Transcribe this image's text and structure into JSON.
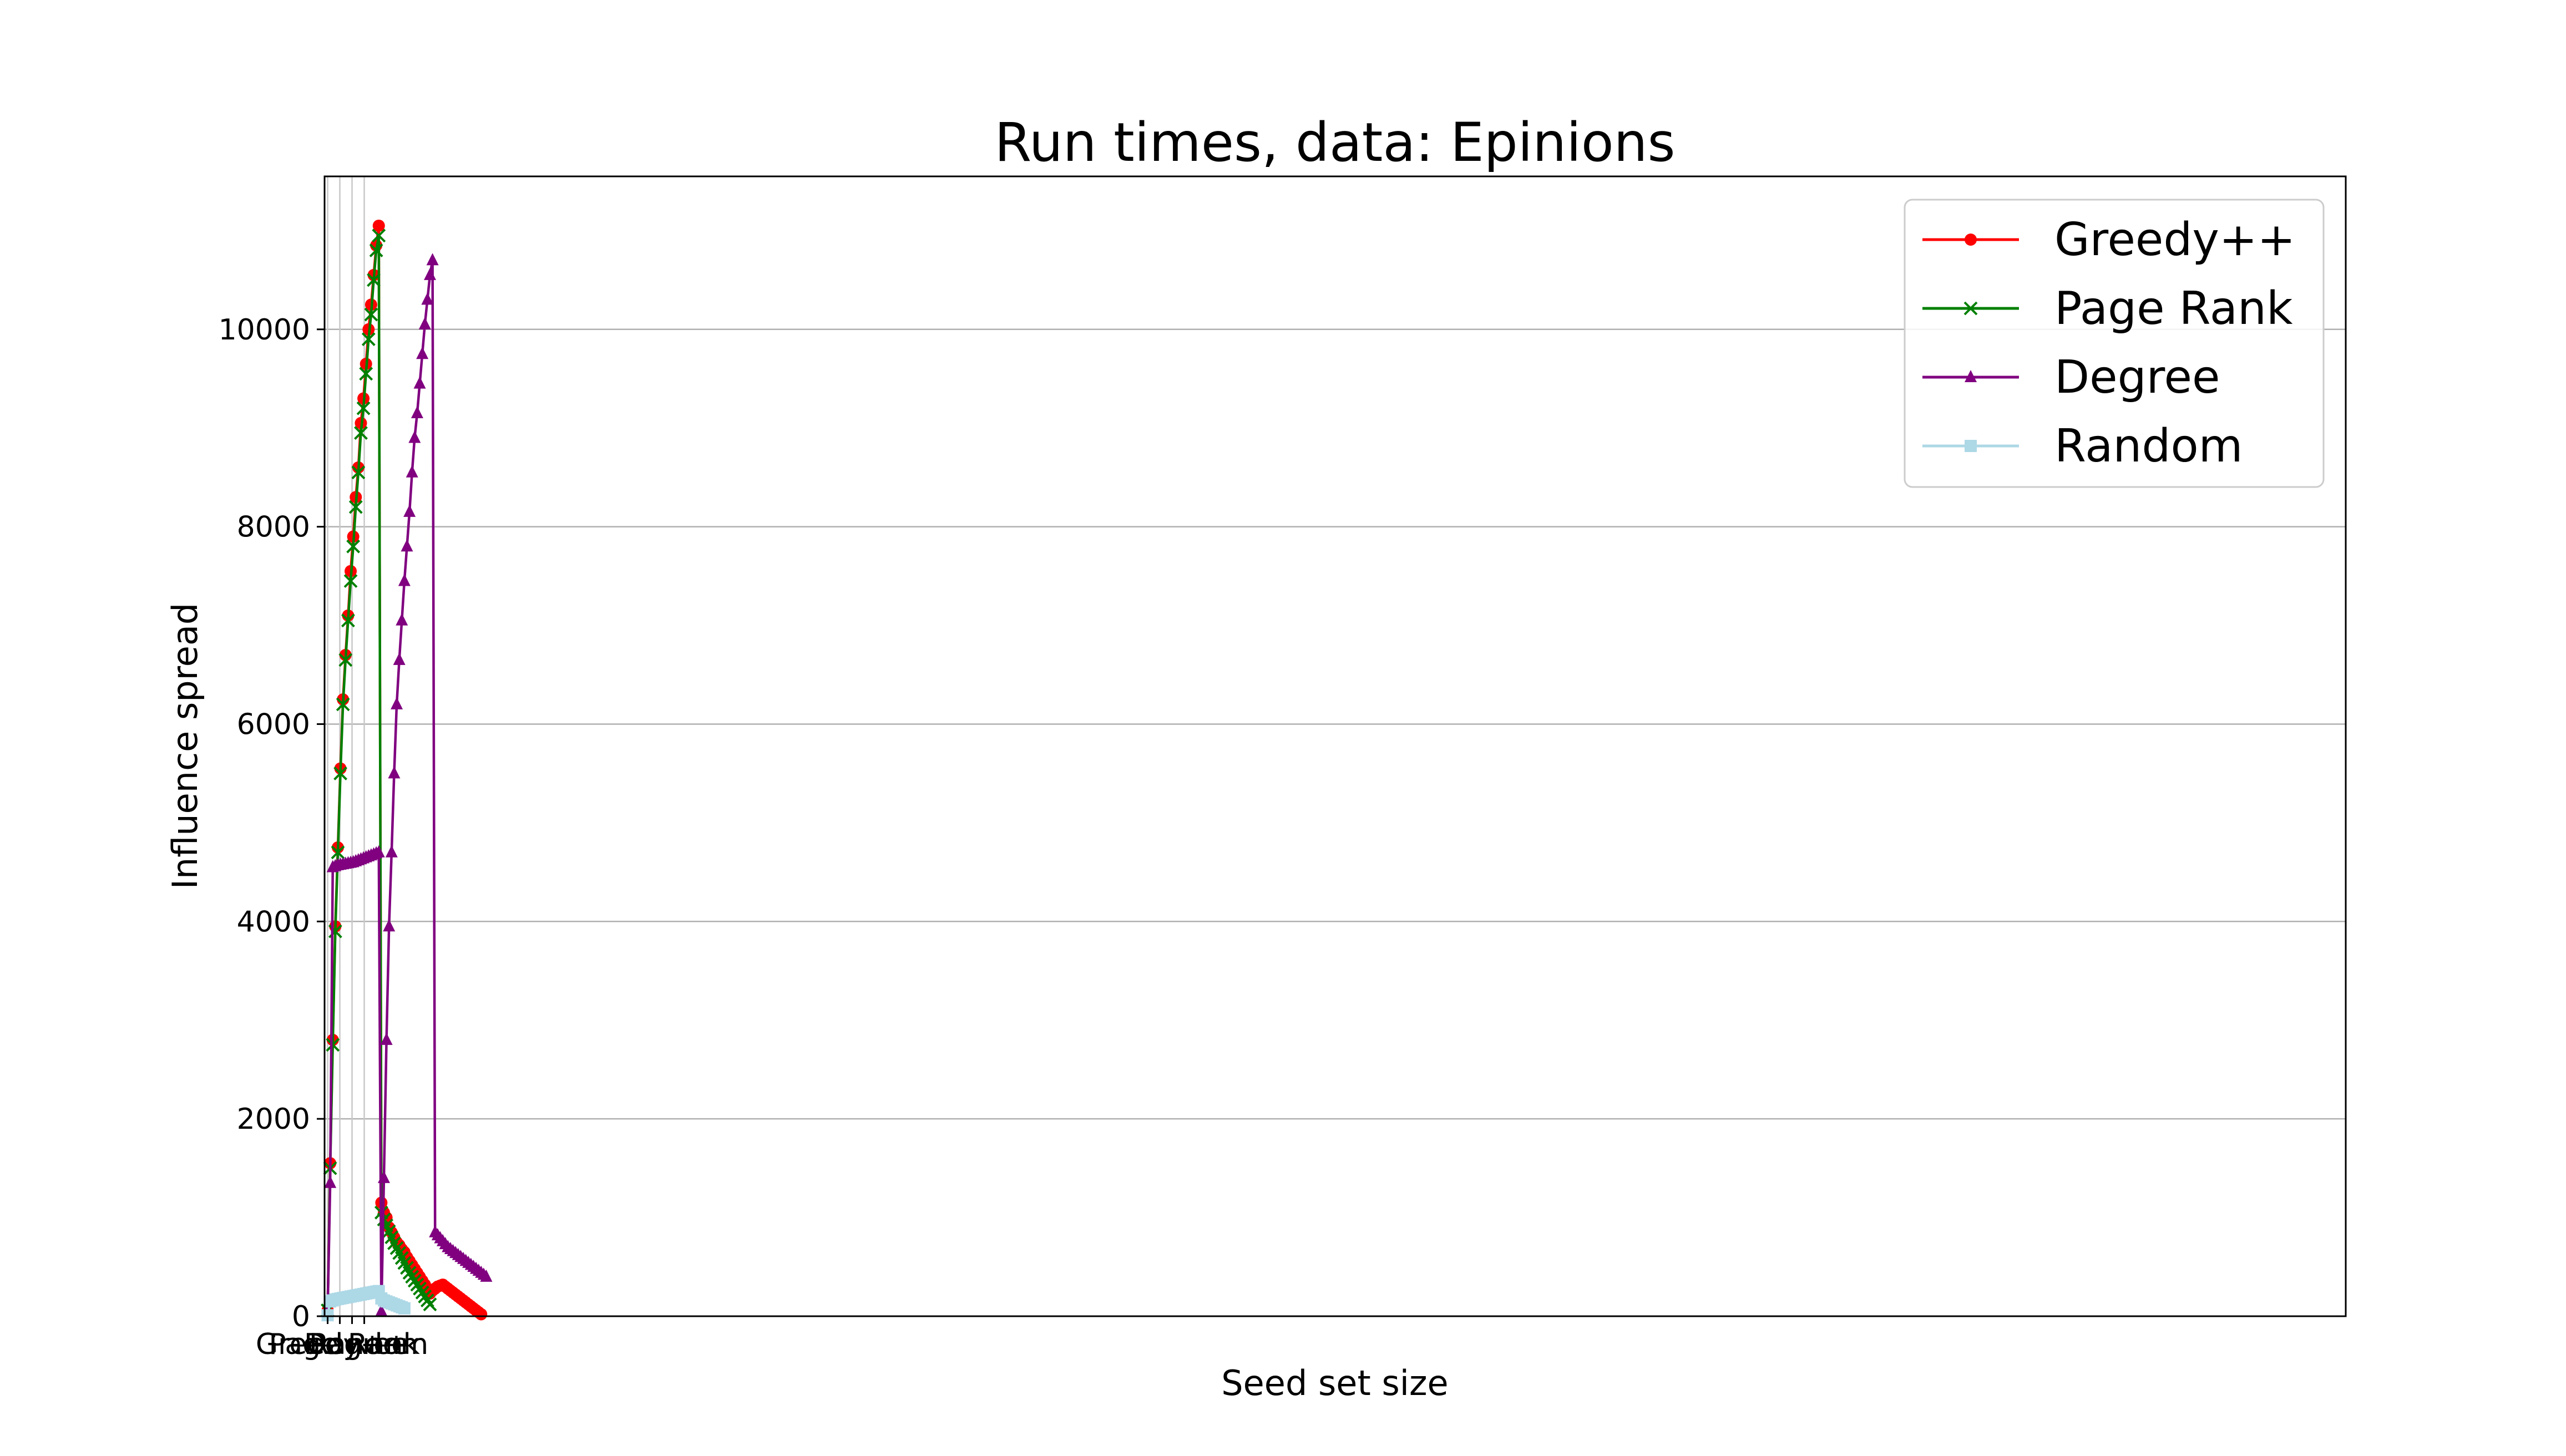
{
  "chart_data": {
    "type": "line",
    "title": "Run times, data: Epinions",
    "xlabel": "Seed set size",
    "ylabel": "Influence spread",
    "xlim": [
      -1.2,
      62
    ],
    "ylim": [
      0,
      11550
    ],
    "y_ticks": [
      0,
      2000,
      4000,
      6000,
      8000,
      10000
    ],
    "x_tick_labels": [
      "Greedy++",
      "Page Rank",
      "Degree",
      "Random"
    ],
    "grid": "horizontal",
    "legend": "top-right",
    "colors": {
      "Greedy++": "#ff0000",
      "Page Rank": "#008000",
      "Degree": "#800080",
      "Random": "#add8e6"
    },
    "series": [
      {
        "name": "Greedy++",
        "color": "#ff0000",
        "marker": "circle",
        "x": [
          0,
          1,
          2,
          3,
          4,
          5,
          6,
          7,
          8,
          9,
          10,
          11,
          12,
          13,
          14,
          15,
          16,
          17,
          18,
          19,
          20,
          21,
          22,
          23,
          24,
          25,
          26,
          27,
          28,
          29,
          30,
          31,
          32,
          33,
          34,
          35,
          36,
          37,
          38,
          39,
          40,
          41,
          42,
          43,
          44,
          45,
          46,
          47,
          48,
          49,
          50,
          51,
          52,
          53,
          54,
          55,
          56,
          57,
          58,
          59,
          60
        ],
        "values": [
          60,
          1550,
          2800,
          3950,
          4750,
          5550,
          6250,
          6700,
          7100,
          7550,
          7900,
          8300,
          8600,
          9050,
          9300,
          9650,
          10000,
          10250,
          10550,
          10850,
          11050,
          1150,
          1050,
          1000,
          900,
          850,
          800,
          750,
          720,
          680,
          650,
          600,
          560,
          520,
          480,
          440,
          400,
          360,
          320,
          280,
          230,
          260,
          280,
          300,
          310,
          320,
          300,
          280,
          260,
          240,
          220,
          200,
          180,
          160,
          140,
          120,
          100,
          80,
          60,
          40,
          20
        ]
      },
      {
        "name": "Page Rank",
        "color": "#008000",
        "marker": "x",
        "x": [
          0,
          1,
          2,
          3,
          4,
          5,
          6,
          7,
          8,
          9,
          10,
          11,
          12,
          13,
          14,
          15,
          16,
          17,
          18,
          19,
          20,
          21,
          22,
          23,
          24,
          25,
          26,
          27,
          28,
          29,
          30,
          31,
          32,
          33,
          34,
          35,
          36,
          37,
          38,
          39,
          40
        ],
        "values": [
          60,
          1500,
          2750,
          3900,
          4700,
          5500,
          6200,
          6650,
          7050,
          7450,
          7800,
          8200,
          8550,
          8950,
          9200,
          9550,
          9900,
          10150,
          10500,
          10800,
          10950,
          1050,
          980,
          920,
          860,
          800,
          740,
          690,
          640,
          590,
          540,
          490,
          440,
          400,
          360,
          320,
          280,
          240,
          200,
          160,
          120
        ]
      },
      {
        "name": "Degree",
        "color": "#800080",
        "marker": "triangle",
        "x": [
          0,
          1,
          2,
          3,
          4,
          5,
          6,
          7,
          8,
          9,
          10,
          11,
          12,
          13,
          14,
          15,
          16,
          17,
          18,
          19,
          20,
          21,
          22,
          23,
          24,
          25,
          26,
          27,
          28,
          29,
          30,
          31,
          32,
          33,
          34,
          35,
          36,
          37,
          38,
          39,
          40,
          41,
          42,
          43,
          44,
          45,
          46,
          47,
          48,
          49,
          50,
          51,
          52,
          53,
          54,
          55,
          56,
          57,
          58,
          59,
          60,
          61,
          62
        ],
        "values": [
          50,
          1350,
          4550,
          4560,
          4570,
          4575,
          4580,
          4585,
          4590,
          4595,
          4600,
          4610,
          4620,
          4630,
          4640,
          4650,
          4660,
          4670,
          4680,
          4690,
          4700,
          50,
          1400,
          2800,
          3950,
          4700,
          5500,
          6200,
          6650,
          7050,
          7450,
          7800,
          8150,
          8550,
          8900,
          9150,
          9450,
          9750,
          10050,
          10300,
          10550,
          10700,
          850,
          820,
          790,
          760,
          730,
          700,
          680,
          660,
          640,
          620,
          600,
          580,
          560,
          540,
          520,
          500,
          480,
          460,
          440,
          420,
          400
        ]
      },
      {
        "name": "Random",
        "color": "#add8e6",
        "marker": "square",
        "x": [
          0,
          1,
          2,
          3,
          4,
          5,
          6,
          7,
          8,
          9,
          10,
          11,
          12,
          13,
          14,
          15,
          16,
          17,
          18,
          19,
          20,
          21,
          22,
          23,
          24,
          25,
          26,
          27,
          28,
          29,
          30
        ],
        "values": [
          10,
          150,
          160,
          170,
          175,
          180,
          185,
          190,
          195,
          200,
          205,
          210,
          215,
          220,
          225,
          230,
          235,
          240,
          245,
          250,
          255,
          180,
          160,
          150,
          140,
          130,
          120,
          110,
          100,
          90,
          80
        ]
      }
    ]
  }
}
